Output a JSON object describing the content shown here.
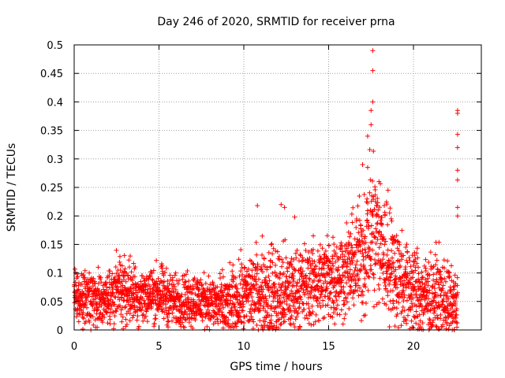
{
  "chart_data": {
    "type": "scatter",
    "title": "Day 246 of 2020, SRMTID for receiver prna",
    "xlabel": "GPS time / hours",
    "ylabel": "SRMTID / TECUs",
    "xlim": [
      0,
      24
    ],
    "ylim": [
      0,
      0.5
    ],
    "xticks": [
      0,
      5,
      10,
      15,
      20
    ],
    "xtick_labels": [
      "0",
      "5",
      "10",
      "15",
      "20"
    ],
    "yticks": [
      0,
      0.05,
      0.1,
      0.15,
      0.2,
      0.25,
      0.3,
      0.35,
      0.4,
      0.45,
      0.5
    ],
    "ytick_labels": [
      "0",
      "0.05",
      "0.1",
      "0.15",
      "0.2",
      "0.25",
      "0.3",
      "0.35",
      "0.4",
      "0.45",
      "0.5"
    ],
    "marker": "+",
    "color": "#ff0000",
    "grid": true,
    "series": [
      {
        "name": "SRMTID",
        "profile": [
          {
            "t": 0.0,
            "mean": 0.055,
            "spread": 0.035
          },
          {
            "t": 1.0,
            "mean": 0.05,
            "spread": 0.035
          },
          {
            "t": 2.0,
            "mean": 0.06,
            "spread": 0.035
          },
          {
            "t": 3.0,
            "mean": 0.07,
            "spread": 0.04
          },
          {
            "t": 4.0,
            "mean": 0.06,
            "spread": 0.035
          },
          {
            "t": 5.0,
            "mean": 0.065,
            "spread": 0.035
          },
          {
            "t": 6.0,
            "mean": 0.05,
            "spread": 0.03
          },
          {
            "t": 7.0,
            "mean": 0.055,
            "spread": 0.035
          },
          {
            "t": 8.0,
            "mean": 0.05,
            "spread": 0.03
          },
          {
            "t": 9.0,
            "mean": 0.04,
            "spread": 0.04
          },
          {
            "t": 10.0,
            "mean": 0.06,
            "spread": 0.045
          },
          {
            "t": 11.0,
            "mean": 0.07,
            "spread": 0.055
          },
          {
            "t": 12.0,
            "mean": 0.06,
            "spread": 0.06
          },
          {
            "t": 13.0,
            "mean": 0.07,
            "spread": 0.05
          },
          {
            "t": 14.0,
            "mean": 0.08,
            "spread": 0.05
          },
          {
            "t": 15.0,
            "mean": 0.09,
            "spread": 0.055
          },
          {
            "t": 16.0,
            "mean": 0.1,
            "spread": 0.05
          },
          {
            "t": 17.0,
            "mean": 0.13,
            "spread": 0.07
          },
          {
            "t": 17.6,
            "mean": 0.18,
            "spread": 0.1
          },
          {
            "t": 18.5,
            "mean": 0.12,
            "spread": 0.07
          },
          {
            "t": 19.5,
            "mean": 0.08,
            "spread": 0.06
          },
          {
            "t": 20.5,
            "mean": 0.06,
            "spread": 0.05
          },
          {
            "t": 21.5,
            "mean": 0.06,
            "spread": 0.05
          },
          {
            "t": 22.5,
            "mean": 0.04,
            "spread": 0.04
          }
        ],
        "coverage_hours": [
          0,
          22.6
        ],
        "sample_interval_hours": 0.008,
        "outliers": [
          {
            "x": 17.6,
            "y": 0.49
          },
          {
            "x": 17.6,
            "y": 0.455
          },
          {
            "x": 17.6,
            "y": 0.4
          },
          {
            "x": 17.5,
            "y": 0.385
          },
          {
            "x": 17.5,
            "y": 0.36
          },
          {
            "x": 17.3,
            "y": 0.34
          },
          {
            "x": 17.0,
            "y": 0.29
          },
          {
            "x": 17.3,
            "y": 0.285
          },
          {
            "x": 12.2,
            "y": 0.22
          },
          {
            "x": 10.8,
            "y": 0.218
          },
          {
            "x": 12.4,
            "y": 0.215
          },
          {
            "x": 13.0,
            "y": 0.198
          },
          {
            "x": 18.5,
            "y": 0.245
          },
          {
            "x": 22.6,
            "y": 0.385
          },
          {
            "x": 22.6,
            "y": 0.38
          },
          {
            "x": 22.6,
            "y": 0.343
          },
          {
            "x": 22.6,
            "y": 0.32
          },
          {
            "x": 22.6,
            "y": 0.28
          },
          {
            "x": 22.6,
            "y": 0.263
          },
          {
            "x": 22.6,
            "y": 0.215
          },
          {
            "x": 22.6,
            "y": 0.2
          }
        ]
      }
    ]
  }
}
